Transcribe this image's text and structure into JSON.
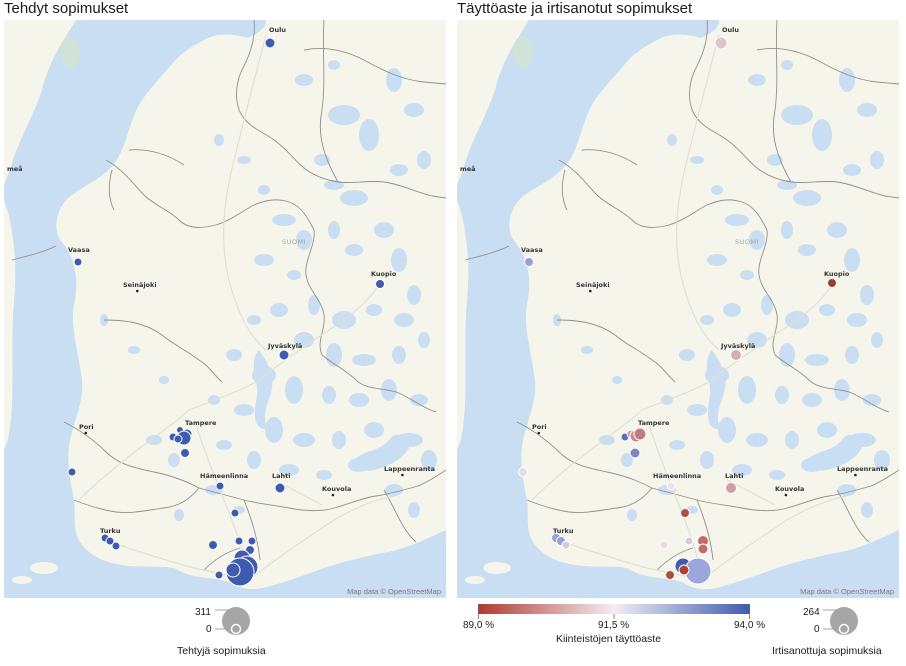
{
  "left": {
    "title": "Tehdyt sopimukset",
    "attribution": "Map data © OpenStreetMap",
    "legend": {
      "max": "311",
      "min": "0",
      "label": "Tehtyjä sopimuksia"
    }
  },
  "right": {
    "title": "Täyttöaste ja irtisanotut sopimukset",
    "attribution": "Map data © OpenStreetMap",
    "color_legend": {
      "min": "89,0 %",
      "mid": "91,5 %",
      "max": "94,0 %",
      "label": "Kiinteistöjen täyttöaste",
      "colors": [
        "#b03a2e",
        "#f2eef3",
        "#3f5bb0"
      ]
    },
    "size_legend": {
      "max": "264",
      "min": "0",
      "label": "Irtisanottuja sopimuksia"
    }
  },
  "cities": [
    {
      "id": "oulu",
      "name": "Oulu"
    },
    {
      "id": "umea",
      "name": "meå"
    },
    {
      "id": "vaasa",
      "name": "Vaasa"
    },
    {
      "id": "seinajoki",
      "name": "Seinäjoki"
    },
    {
      "id": "kuopio",
      "name": "Kuopio"
    },
    {
      "id": "jyvaskyla",
      "name": "Jyväskylä"
    },
    {
      "id": "tampere",
      "name": "Tampere"
    },
    {
      "id": "pori",
      "name": "Pori"
    },
    {
      "id": "hameenlinna",
      "name": "Hämeenlinna"
    },
    {
      "id": "lahti",
      "name": "Lahti"
    },
    {
      "id": "kouvola",
      "name": "Kouvola"
    },
    {
      "id": "lappeenranta",
      "name": "Lappeenranta"
    },
    {
      "id": "turku",
      "name": "Turku"
    },
    {
      "id": "suomi",
      "name": "SUOMI"
    }
  ],
  "colors": {
    "water": "#c9def2",
    "land": "#f6f5ec",
    "border": "#8f8f8f",
    "bubble_blue": "#3f5bb0",
    "legend_gray": "#a6a6a6"
  }
}
